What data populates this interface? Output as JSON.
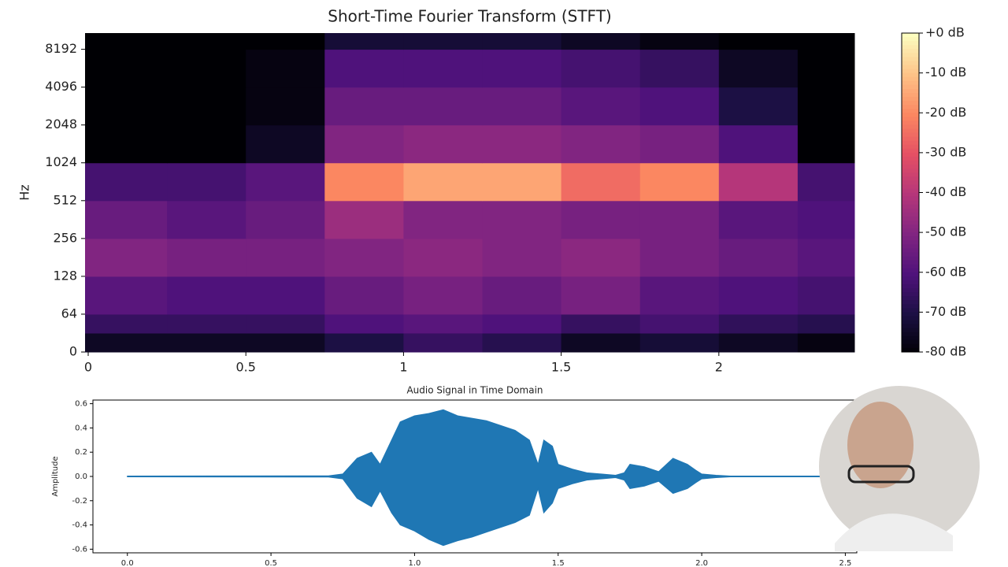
{
  "chart_data": [
    {
      "type": "heatmap",
      "title": "Short-Time Fourier Transform (STFT)",
      "ylabel": "Hz",
      "colormap": "magma",
      "xlim": [
        -0.01,
        2.43
      ],
      "xticks": [
        0,
        0.5,
        1,
        1.5,
        2
      ],
      "yscale": "symlog",
      "ylim": [
        0,
        11025
      ],
      "yticks": [
        0,
        64,
        128,
        256,
        512,
        1024,
        2048,
        4096,
        8192
      ],
      "x_bins": [
        -0.01,
        0.25,
        0.5,
        0.75,
        1,
        1.25,
        1.5,
        1.75,
        2,
        2.25,
        2.43
      ],
      "y_bins": [
        0,
        32,
        64,
        128,
        256,
        512,
        1024,
        2048,
        4096,
        8192,
        11025
      ],
      "values": [
        [
          -75,
          -75,
          -75,
          -70,
          -65,
          -68,
          -75,
          -72,
          -75,
          -78
        ],
        [
          -65,
          -65,
          -65,
          -60,
          -58,
          -60,
          -65,
          -62,
          -66,
          -68
        ],
        [
          -58,
          -60,
          -60,
          -55,
          -52,
          -55,
          -52,
          -58,
          -60,
          -62
        ],
        [
          -50,
          -52,
          -52,
          -50,
          -48,
          -50,
          -48,
          -52,
          -55,
          -58
        ],
        [
          -55,
          -58,
          -55,
          -45,
          -50,
          -50,
          -52,
          -52,
          -58,
          -60
        ],
        [
          -62,
          -62,
          -58,
          -20,
          -15,
          -15,
          -25,
          -20,
          -40,
          -62
        ],
        [
          -80,
          -80,
          -75,
          -50,
          -48,
          -48,
          -50,
          -52,
          -60,
          -80
        ],
        [
          -80,
          -80,
          -78,
          -55,
          -55,
          -55,
          -58,
          -60,
          -70,
          -80
        ],
        [
          -80,
          -80,
          -78,
          -60,
          -60,
          -60,
          -62,
          -65,
          -75,
          -80
        ],
        [
          -80,
          -80,
          -80,
          -72,
          -72,
          -72,
          -75,
          -78,
          -80,
          -80
        ]
      ],
      "clim": [
        -80,
        0
      ],
      "cticks": [
        {
          "value": 0,
          "label": "+0 dB"
        },
        {
          "value": -10,
          "label": "-10 dB"
        },
        {
          "value": -20,
          "label": "-20 dB"
        },
        {
          "value": -30,
          "label": "-30 dB"
        },
        {
          "value": -40,
          "label": "-40 dB"
        },
        {
          "value": -50,
          "label": "-50 dB"
        },
        {
          "value": -60,
          "label": "-60 dB"
        },
        {
          "value": -70,
          "label": "-70 dB"
        },
        {
          "value": -80,
          "label": "-80 dB"
        }
      ]
    },
    {
      "type": "area",
      "title": "Audio Signal in Time Domain",
      "ylabel": "Amplitude",
      "color": "#1f77b4",
      "xlim": [
        -0.12,
        2.54
      ],
      "xticks": [
        {
          "value": 0,
          "label": "0.0"
        },
        0.5,
        {
          "value": 1,
          "label": "1.0"
        },
        1.5,
        {
          "value": 2,
          "label": "2.0"
        },
        2.5
      ],
      "ylim": [
        -0.63,
        0.63
      ],
      "yticks": [
        -0.6,
        -0.4,
        -0.2,
        {
          "value": 0,
          "label": "0.0"
        },
        0.2,
        0.4,
        0.6
      ],
      "x": [
        0,
        0.7,
        0.75,
        0.8,
        0.85,
        0.88,
        0.92,
        0.95,
        1,
        1.05,
        1.1,
        1.15,
        1.2,
        1.25,
        1.3,
        1.35,
        1.4,
        1.43,
        1.45,
        1.48,
        1.5,
        1.55,
        1.6,
        1.7,
        1.73,
        1.75,
        1.8,
        1.85,
        1.9,
        1.95,
        1.98,
        2,
        2.05,
        2.1,
        2.42
      ],
      "y_upper": [
        0.003,
        0.005,
        0.02,
        0.15,
        0.2,
        0.1,
        0.3,
        0.45,
        0.5,
        0.52,
        0.55,
        0.5,
        0.48,
        0.46,
        0.42,
        0.38,
        0.3,
        0.1,
        0.3,
        0.25,
        0.1,
        0.06,
        0.03,
        0.01,
        0.03,
        0.1,
        0.08,
        0.04,
        0.15,
        0.1,
        0.05,
        0.02,
        0.01,
        0.003,
        0.003
      ],
      "y_lower": [
        -0.003,
        -0.005,
        -0.02,
        -0.18,
        -0.25,
        -0.12,
        -0.3,
        -0.4,
        -0.45,
        -0.52,
        -0.57,
        -0.53,
        -0.5,
        -0.46,
        -0.42,
        -0.38,
        -0.32,
        -0.1,
        -0.3,
        -0.22,
        -0.1,
        -0.06,
        -0.03,
        -0.01,
        -0.03,
        -0.1,
        -0.08,
        -0.04,
        -0.14,
        -0.1,
        -0.05,
        -0.02,
        -0.01,
        -0.003,
        -0.003
      ]
    }
  ]
}
